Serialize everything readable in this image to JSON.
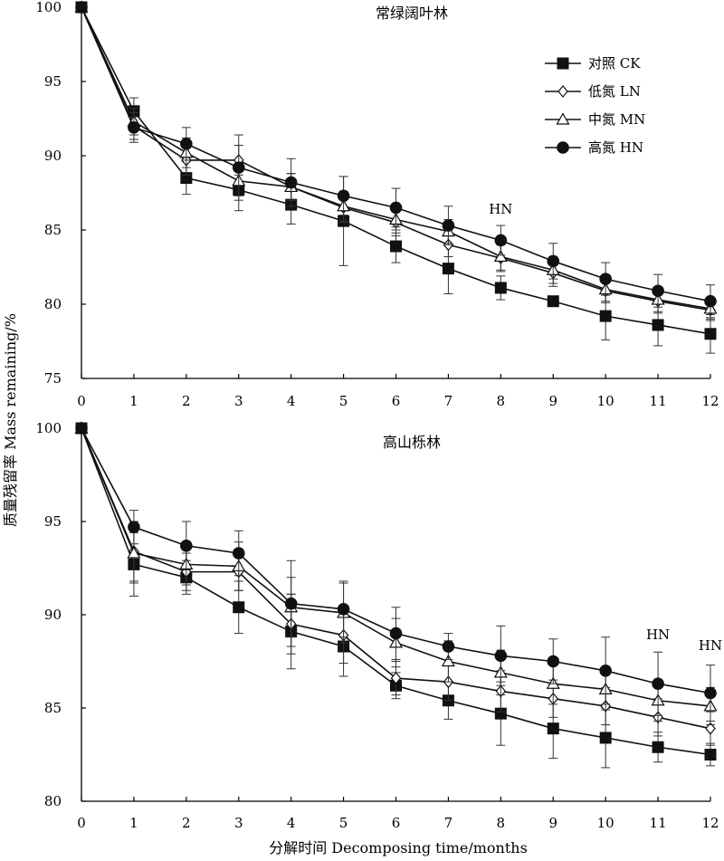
{
  "chart_data": [
    {
      "type": "line",
      "title": "常绿阔叶林",
      "x": [
        0,
        1,
        2,
        3,
        4,
        5,
        6,
        7,
        8,
        9,
        10,
        11,
        12
      ],
      "xlim": [
        0,
        12
      ],
      "ylim": [
        75,
        100
      ],
      "yticks": [
        75,
        80,
        85,
        90,
        95,
        100
      ],
      "xlabel": "分解时间 Decomposing time/months",
      "ylabel": "质量残留率 Mass remaining/%",
      "legend_position": "top-right",
      "series": [
        {
          "name": "对照 CK",
          "marker": "square",
          "values": [
            100,
            93.0,
            88.5,
            87.7,
            86.7,
            85.6,
            83.9,
            82.4,
            81.1,
            80.2,
            79.2,
            78.6,
            78.0
          ],
          "errors": [
            0,
            0.9,
            1.1,
            1.4,
            1.3,
            3.0,
            1.1,
            1.7,
            0.8,
            0.3,
            1.6,
            1.4,
            1.3
          ]
        },
        {
          "name": "低氮 LN",
          "marker": "diamond",
          "values": [
            100,
            92.0,
            89.7,
            89.7,
            87.9,
            86.5,
            85.5,
            84.0,
            83.1,
            82.1,
            80.9,
            80.2,
            79.6
          ],
          "errors": [
            0,
            0.9,
            1.0,
            1.0,
            0.9,
            1.0,
            0.9,
            0.8,
            0.9,
            0.9,
            0.8,
            0.8,
            0.7
          ]
        },
        {
          "name": "中氮 MN",
          "marker": "triangle",
          "values": [
            100,
            92.3,
            90.2,
            88.3,
            87.9,
            86.6,
            85.7,
            84.9,
            83.2,
            82.3,
            81.0,
            80.3,
            79.7
          ],
          "errors": [
            0,
            0.9,
            1.0,
            1.0,
            0.9,
            1.0,
            0.9,
            0.8,
            0.9,
            0.9,
            0.8,
            0.8,
            0.7
          ]
        },
        {
          "name": "高氮 HN",
          "marker": "circle",
          "values": [
            100,
            91.9,
            90.8,
            89.2,
            88.2,
            87.3,
            86.5,
            85.3,
            84.3,
            82.9,
            81.7,
            80.9,
            80.2
          ],
          "errors": [
            0,
            1.0,
            1.1,
            2.2,
            1.6,
            1.3,
            1.3,
            1.3,
            1.0,
            1.2,
            1.1,
            1.1,
            1.1
          ]
        }
      ],
      "annotations": [
        {
          "text": "HN",
          "x": 8,
          "y": 86.1
        }
      ]
    },
    {
      "type": "line",
      "title": "高山栎林",
      "x": [
        0,
        1,
        2,
        3,
        4,
        5,
        6,
        7,
        8,
        9,
        10,
        11,
        12
      ],
      "xlim": [
        0,
        12
      ],
      "ylim": [
        80,
        100
      ],
      "yticks": [
        80,
        85,
        90,
        95,
        100
      ],
      "series": [
        {
          "name": "对照 CK",
          "marker": "square",
          "values": [
            100,
            92.7,
            92.0,
            90.4,
            89.1,
            88.3,
            86.2,
            85.4,
            84.7,
            83.9,
            83.4,
            82.9,
            82.5
          ],
          "errors": [
            0,
            1.7,
            0.9,
            1.4,
            2.0,
            1.6,
            0.7,
            1.0,
            1.7,
            1.6,
            1.6,
            0.8,
            0.6
          ]
        },
        {
          "name": "低氮 LN",
          "marker": "diamond",
          "values": [
            100,
            93.4,
            92.3,
            92.3,
            89.5,
            88.9,
            86.6,
            86.4,
            85.9,
            85.5,
            85.1,
            84.5,
            83.9
          ],
          "errors": [
            0,
            1.6,
            1.0,
            1.0,
            1.6,
            1.5,
            0.9,
            1.0,
            1.1,
            1.0,
            1.0,
            1.0,
            0.9
          ]
        },
        {
          "name": "中氮 MN",
          "marker": "triangle",
          "values": [
            100,
            93.3,
            92.7,
            92.6,
            90.4,
            90.1,
            88.5,
            87.5,
            86.9,
            86.3,
            86.0,
            85.4,
            85.1
          ],
          "errors": [
            0,
            1.6,
            1.1,
            1.3,
            1.6,
            1.6,
            1.3,
            1.1,
            1.2,
            1.1,
            1.1,
            1.1,
            1.0
          ]
        },
        {
          "name": "高氮 HN",
          "marker": "circle",
          "values": [
            100,
            94.7,
            93.7,
            93.3,
            90.6,
            90.3,
            89.0,
            88.3,
            87.8,
            87.5,
            87.0,
            86.3,
            85.8
          ],
          "errors": [
            0,
            0.9,
            1.3,
            1.2,
            2.3,
            1.5,
            1.4,
            0.7,
            1.6,
            1.2,
            1.8,
            1.7,
            1.5
          ]
        }
      ],
      "annotations": [
        {
          "text": "HN",
          "x": 11,
          "y": 88.7
        },
        {
          "text": "HN",
          "x": 12,
          "y": 88.1
        }
      ]
    }
  ]
}
